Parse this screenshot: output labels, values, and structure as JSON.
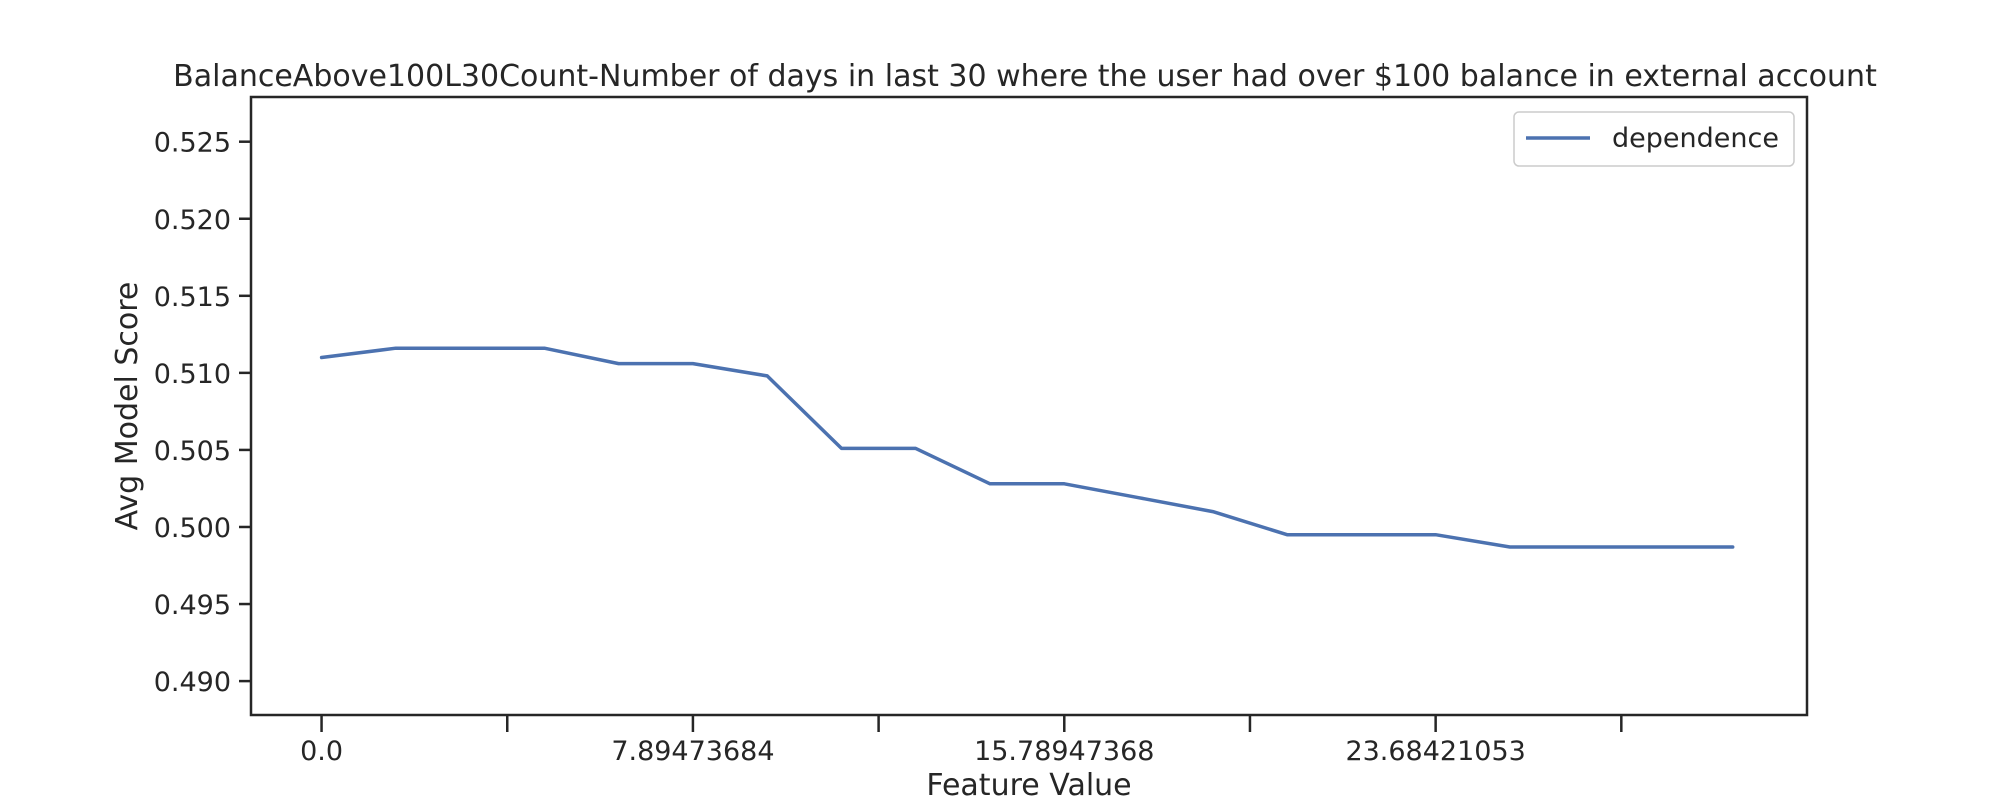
{
  "chart_data": {
    "type": "line",
    "title": "BalanceAbove100L30Count-Number of days in last 30 where the user had over $100 balance in external account",
    "xlabel": "Feature Value",
    "ylabel": "Avg Model Score",
    "xlim": [
      -1.9,
      40
    ],
    "ylim": [
      0.4878,
      0.5279
    ],
    "yticks": [
      0.49,
      0.495,
      0.5,
      0.505,
      0.51,
      0.515,
      0.52,
      0.525
    ],
    "ytick_labels": [
      "0.490",
      "0.495",
      "0.500",
      "0.505",
      "0.510",
      "0.515",
      "0.520",
      "0.525"
    ],
    "xticks": [
      0,
      5,
      10,
      15,
      20,
      25,
      30,
      35
    ],
    "xtick_labels": [
      "0.0",
      "",
      "7.89473684",
      "",
      "15.78947368",
      "",
      "23.68421053",
      ""
    ],
    "grid": false,
    "legend_position": "top-right",
    "series": [
      {
        "name": "dependence",
        "color": "#4c72b0",
        "x": [
          0,
          2,
          4,
          6,
          8,
          10,
          12,
          14,
          16,
          18,
          20,
          22,
          24,
          26,
          28,
          30,
          32,
          34,
          36,
          38
        ],
        "y": [
          0.511,
          0.5116,
          0.5116,
          0.5116,
          0.5106,
          0.5106,
          0.5098,
          0.5051,
          0.5051,
          0.5028,
          0.5028,
          0.5019,
          0.501,
          0.4995,
          0.4995,
          0.4995,
          0.4987,
          0.4987,
          0.4987,
          0.4987
        ]
      }
    ]
  }
}
